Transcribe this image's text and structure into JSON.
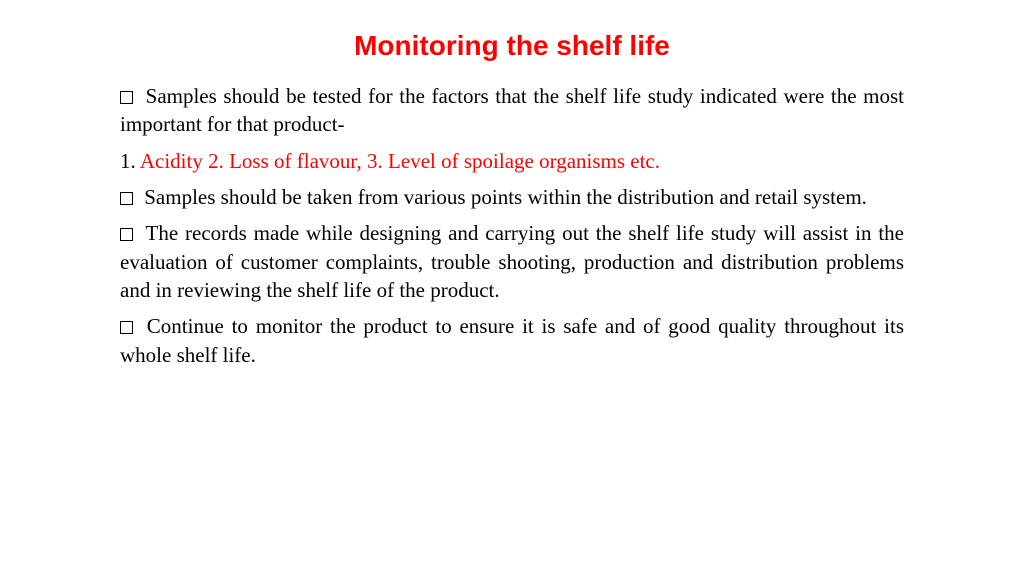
{
  "title": {
    "text": "Monitoring the shelf life",
    "color": "#ff0000",
    "fontsize": 28
  },
  "paragraphs": [
    {
      "text": "Samples should be tested for the factors that the shelf life study indicated were the most important for that product-",
      "color": "#000000",
      "bullet": true
    }
  ],
  "factors": {
    "prefix": "1. ",
    "prefix_color": "#000000",
    "text": "Acidity 2. Loss of flavour, 3. Level of spoilage organisms etc.",
    "color": "#ff0000"
  },
  "paragraphs2": [
    {
      "text": "Samples should be taken from various points within the distribution and retail system.",
      "color": "#000000",
      "bullet": true
    },
    {
      "text": "The records made while designing and carrying out the shelf life study will assist in the evaluation of customer complaints, trouble shooting, production and distribution problems and in reviewing the shelf life of the product.",
      "color": "#000000",
      "bullet": true
    },
    {
      "text": "Continue to monitor the product to ensure it is safe and of good quality throughout its whole shelf life.",
      "color": "#000000",
      "bullet": true
    }
  ],
  "body_fontsize": 21,
  "body_color": "#000000",
  "background_color": "#ffffff"
}
